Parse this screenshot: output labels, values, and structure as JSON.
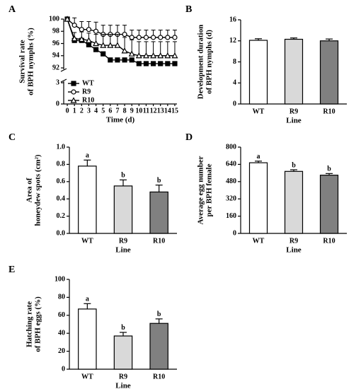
{
  "chart_data": [
    {
      "type": "line",
      "panel": "A",
      "ylabel": [
        "Survival rate",
        "of BPH nymphs (%)"
      ],
      "xlabel": "Time (d)",
      "x": [
        0,
        1,
        2,
        3,
        4,
        5,
        6,
        7,
        8,
        9,
        10,
        11,
        12,
        13,
        14,
        15
      ],
      "xlim": [
        -0.5,
        15.3
      ],
      "xticks": [
        0,
        1,
        2,
        3,
        4,
        5,
        6,
        7,
        8,
        9,
        10,
        11,
        12,
        13,
        14,
        15
      ],
      "ylim": [
        0,
        100
      ],
      "yticks": [
        0,
        3,
        92,
        94,
        96,
        98,
        100
      ],
      "axis_break": true,
      "legend": "lower left",
      "series": [
        {
          "name": "WT",
          "color": "#000000",
          "marker": "square",
          "filled": true,
          "values": [
            100,
            96.5,
            96.5,
            95.8,
            95,
            94.3,
            93.3,
            93.3,
            93.3,
            93.3,
            92.7,
            92.7,
            92.7,
            92.7,
            92.7,
            92.7
          ]
        },
        {
          "name": "R9",
          "color": "#000000",
          "marker": "circle",
          "filled": false,
          "values": [
            100,
            99,
            98.3,
            98.3,
            98,
            97.5,
            97.5,
            97.5,
            97.5,
            97,
            97,
            97,
            97,
            97,
            97,
            97
          ],
          "errors": [
            0,
            1.2,
            1.3,
            1.3,
            1.5,
            1.5,
            1.5,
            1.5,
            1.5,
            1.2,
            1.2,
            1.2,
            1.2,
            1.2,
            1.2,
            1.2
          ]
        },
        {
          "name": "R10",
          "color": "#000000",
          "marker": "triangle",
          "filled": false,
          "values": [
            100,
            96.8,
            96.7,
            96.5,
            96,
            95.7,
            95.7,
            95.7,
            94.8,
            94.3,
            94,
            94,
            94,
            94,
            94,
            94
          ],
          "errors": [
            0,
            1,
            1.2,
            1.2,
            1.5,
            1.8,
            1.8,
            1.8,
            2.2,
            2.3,
            2.3,
            2.3,
            2.3,
            2.3,
            2.3,
            2.3
          ]
        }
      ]
    },
    {
      "type": "bar",
      "panel": "B",
      "ylabel": [
        "Development duration",
        "of BPH nymphs (d)"
      ],
      "xlabel": "Line",
      "categories": [
        "WT",
        "R9",
        "R10"
      ],
      "values": [
        12.1,
        12.3,
        12.0
      ],
      "errors": [
        0.3,
        0.25,
        0.35
      ],
      "colors": [
        "#ffffff",
        "#d9d9d9",
        "#808080"
      ],
      "ylim": [
        0,
        16
      ],
      "yticks": [
        0,
        4,
        8,
        12,
        16
      ]
    },
    {
      "type": "bar",
      "panel": "C",
      "ylabel": [
        "Area of",
        "honeydew spots (cm²)"
      ],
      "xlabel": "Line",
      "categories": [
        "WT",
        "R9",
        "R10"
      ],
      "values": [
        0.78,
        0.55,
        0.48
      ],
      "errors": [
        0.07,
        0.07,
        0.08
      ],
      "letters": [
        "a",
        "b",
        "b"
      ],
      "colors": [
        "#ffffff",
        "#d9d9d9",
        "#808080"
      ],
      "ylim": [
        0,
        1
      ],
      "yticks": [
        {
          "value": 0,
          "label": "0.0"
        },
        0.2,
        0.4,
        0.6,
        0.8,
        {
          "value": 1,
          "label": "1.0"
        }
      ]
    },
    {
      "type": "bar",
      "panel": "D",
      "ylabel": [
        "Average egg number",
        "per BPH female"
      ],
      "xlabel": "Line",
      "categories": [
        "WT",
        "R9",
        "R10"
      ],
      "values": [
        655,
        575,
        540
      ],
      "errors": [
        15,
        15,
        15
      ],
      "letters": [
        "a",
        "b",
        "b"
      ],
      "colors": [
        "#ffffff",
        "#d9d9d9",
        "#808080"
      ],
      "ylim": [
        0,
        800
      ],
      "yticks": [
        0,
        160,
        320,
        480,
        640,
        800
      ]
    },
    {
      "type": "bar",
      "panel": "E",
      "ylabel": [
        "Hatching rate",
        "of BPH eggs (%)"
      ],
      "xlabel": "Line",
      "categories": [
        "WT",
        "R9",
        "R10"
      ],
      "values": [
        67,
        37,
        51
      ],
      "errors": [
        6,
        4,
        5
      ],
      "letters": [
        "a",
        "b",
        "b"
      ],
      "colors": [
        "#ffffff",
        "#d9d9d9",
        "#808080"
      ],
      "ylim": [
        0,
        100
      ],
      "yticks": [
        0,
        20,
        40,
        60,
        80,
        100
      ]
    }
  ]
}
